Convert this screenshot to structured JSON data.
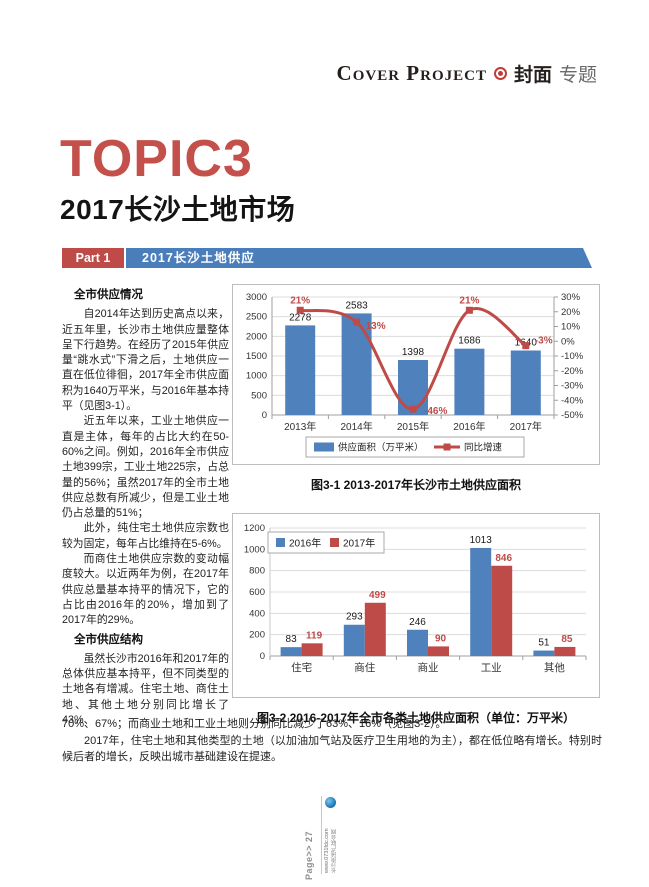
{
  "header": {
    "title_en": "Cover Project",
    "title_zh_bold": "封面",
    "title_zh_light": "专题"
  },
  "titles": {
    "topic": "TOPIC3",
    "subtitle": "2017长沙土地市场"
  },
  "banner": {
    "part_label": "Part 1",
    "title": "2017长沙土地供应"
  },
  "article": {
    "heading1": "全市供应情况",
    "p1": "自2014年达到历史高点以来，近五年里，长沙市土地供应量整体呈下行趋势。在经历了2015年供应量“跳水式”下滑之后，土地供应一直在低位徘徊，2017年全市供应面积为1640万平米，与2016年基本持平（见图3-1）。",
    "p2": "近五年以来，工业土地供应一直是主体，每年的占比大约在50-60%之间。例如，2016年全市供应土地399宗，工业土地225宗，占总量的56%；虽然2017年的全市土地供应总数有所减少，但是工业土地仍占总量的51%；",
    "p3": "此外，纯住宅土地供应宗数也较为固定，每年占比维持在5-6%。",
    "p4": "而商住土地供应宗数的变动幅度较大。以近两年为例，在2017年供应总量基本持平的情况下，它的占比由2016年的20%，增加到了2017年的29%。",
    "heading2": "全市供应结构",
    "p5_left": "虽然长沙市2016年和2017年的总体供应基本持平，但不同类型的土地各有增减。住宅土地、商住土地、其他土地分别同比增长了43%、",
    "p5_cont": "70%、67%；而商业土地和工业土地则分别同比减少了63%、16%（见图3-2）。",
    "p6": "2017年，住宅土地和其他类型的土地（以加油加气站及医疗卫生用地的为主），都在低位略有增长。特别时候后者的增长，反映出城市基础建设在提速。"
  },
  "chart_data": [
    {
      "type": "bar",
      "subtype": "bar-with-line",
      "caption": "图3-1  2013-2017年长沙市土地供应面积",
      "categories": [
        "2013年",
        "2014年",
        "2015年",
        "2016年",
        "2017年"
      ],
      "series": [
        {
          "name": "供应面积（万平米）",
          "kind": "bar",
          "color": "#4f81bd",
          "values": [
            2278,
            2583,
            1398,
            1686,
            1640
          ]
        },
        {
          "name": "同比增速",
          "kind": "line",
          "color": "#be4b48",
          "values": [
            21,
            13,
            -46,
            21,
            -3
          ],
          "unit": "%"
        }
      ],
      "left_axis": {
        "min": 0,
        "max": 3000,
        "step": 500
      },
      "right_axis": {
        "min": -50,
        "max": 30,
        "step": 10,
        "format": "percent"
      },
      "legend_position": "bottom",
      "grid": true
    },
    {
      "type": "bar",
      "subtype": "grouped-bar",
      "caption": "图3-2  2016-2017年全市各类土地供应面积（单位：万平米）",
      "categories": [
        "住宅",
        "商住",
        "商业",
        "工业",
        "其他"
      ],
      "series": [
        {
          "name": "2016年",
          "color": "#4f81bd",
          "values": [
            83,
            293,
            246,
            1013,
            51
          ]
        },
        {
          "name": "2017年",
          "color": "#be4b48",
          "values": [
            119,
            499,
            90,
            846,
            85
          ]
        }
      ],
      "y_axis": {
        "min": 0,
        "max": 1200,
        "step": 200
      },
      "legend_position": "top-left",
      "grid": true
    }
  ],
  "footer": {
    "page_label": "Page>> 27",
    "site": "www.0731fdc.com",
    "slogan": "长沙房地产联合网"
  },
  "colors": {
    "accent_red": "#be4b48",
    "accent_blue": "#4f81bd",
    "banner_blue": "#4a7ebb",
    "title_red": "#c4504c"
  }
}
